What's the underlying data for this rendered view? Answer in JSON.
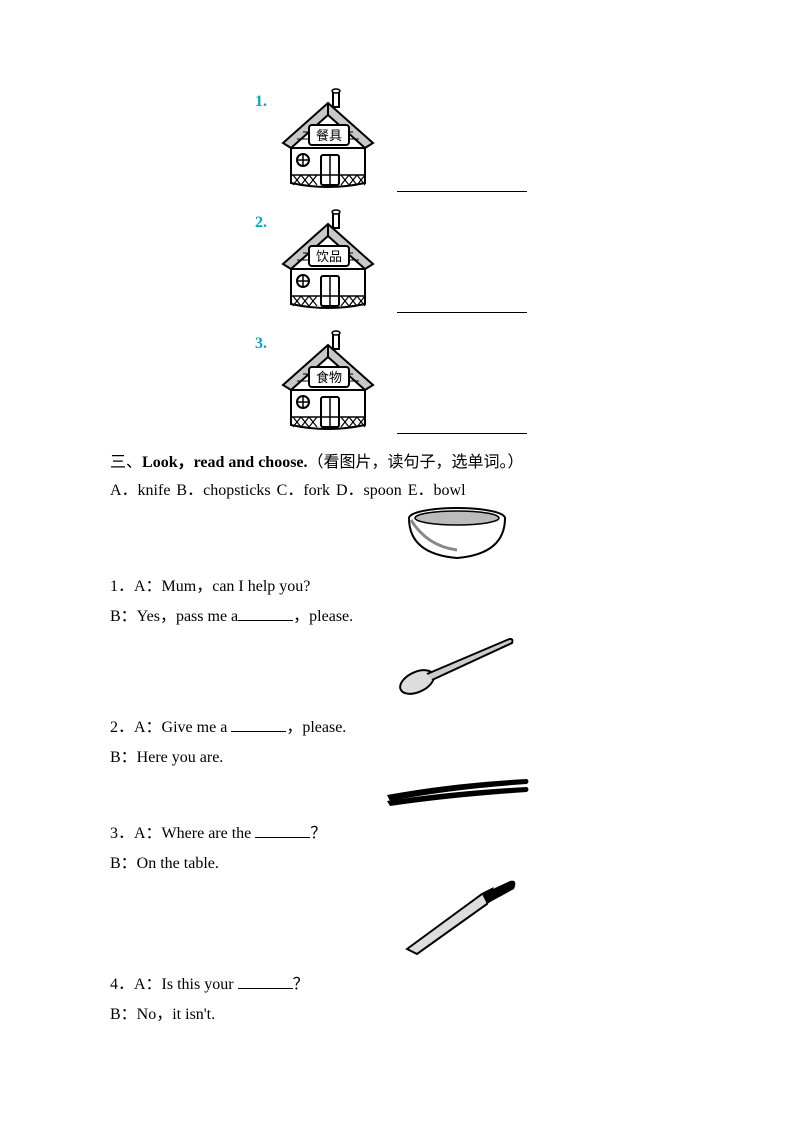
{
  "houses": [
    {
      "num": "1.",
      "label": "餐具"
    },
    {
      "num": "2.",
      "label": "饮品"
    },
    {
      "num": "3.",
      "label": "食物"
    }
  ],
  "section3": {
    "prefix": "三、",
    "title_bold": "Look，read and choose.",
    "title_rest": "（看图片，读句子，选单词。）",
    "choices_line": "A．knife   B．chopsticks   C．fork   D．spoon   E．bowl"
  },
  "questions": [
    {
      "img": "bowl",
      "a_pre": "1．A：Mum，can I help you?",
      "b_pre": "B：Yes，pass me a",
      "b_post": "，please."
    },
    {
      "img": "spoon",
      "a_pre": "2．A：Give me a ",
      "a_post": "，please.",
      "b_pre": "B：Here you are."
    },
    {
      "img": "chopsticks",
      "a_pre": "3．A：Where are the ",
      "a_post": "？",
      "b_pre": "B：On the table."
    },
    {
      "img": "knife",
      "a_pre": "4．A：Is this your ",
      "a_post": "？",
      "b_pre": "B：No，it isn't."
    }
  ],
  "styling": {
    "num_color": "#00a8c6",
    "text_color": "#000000",
    "font_family": "Times New Roman",
    "background": "#ffffff"
  }
}
